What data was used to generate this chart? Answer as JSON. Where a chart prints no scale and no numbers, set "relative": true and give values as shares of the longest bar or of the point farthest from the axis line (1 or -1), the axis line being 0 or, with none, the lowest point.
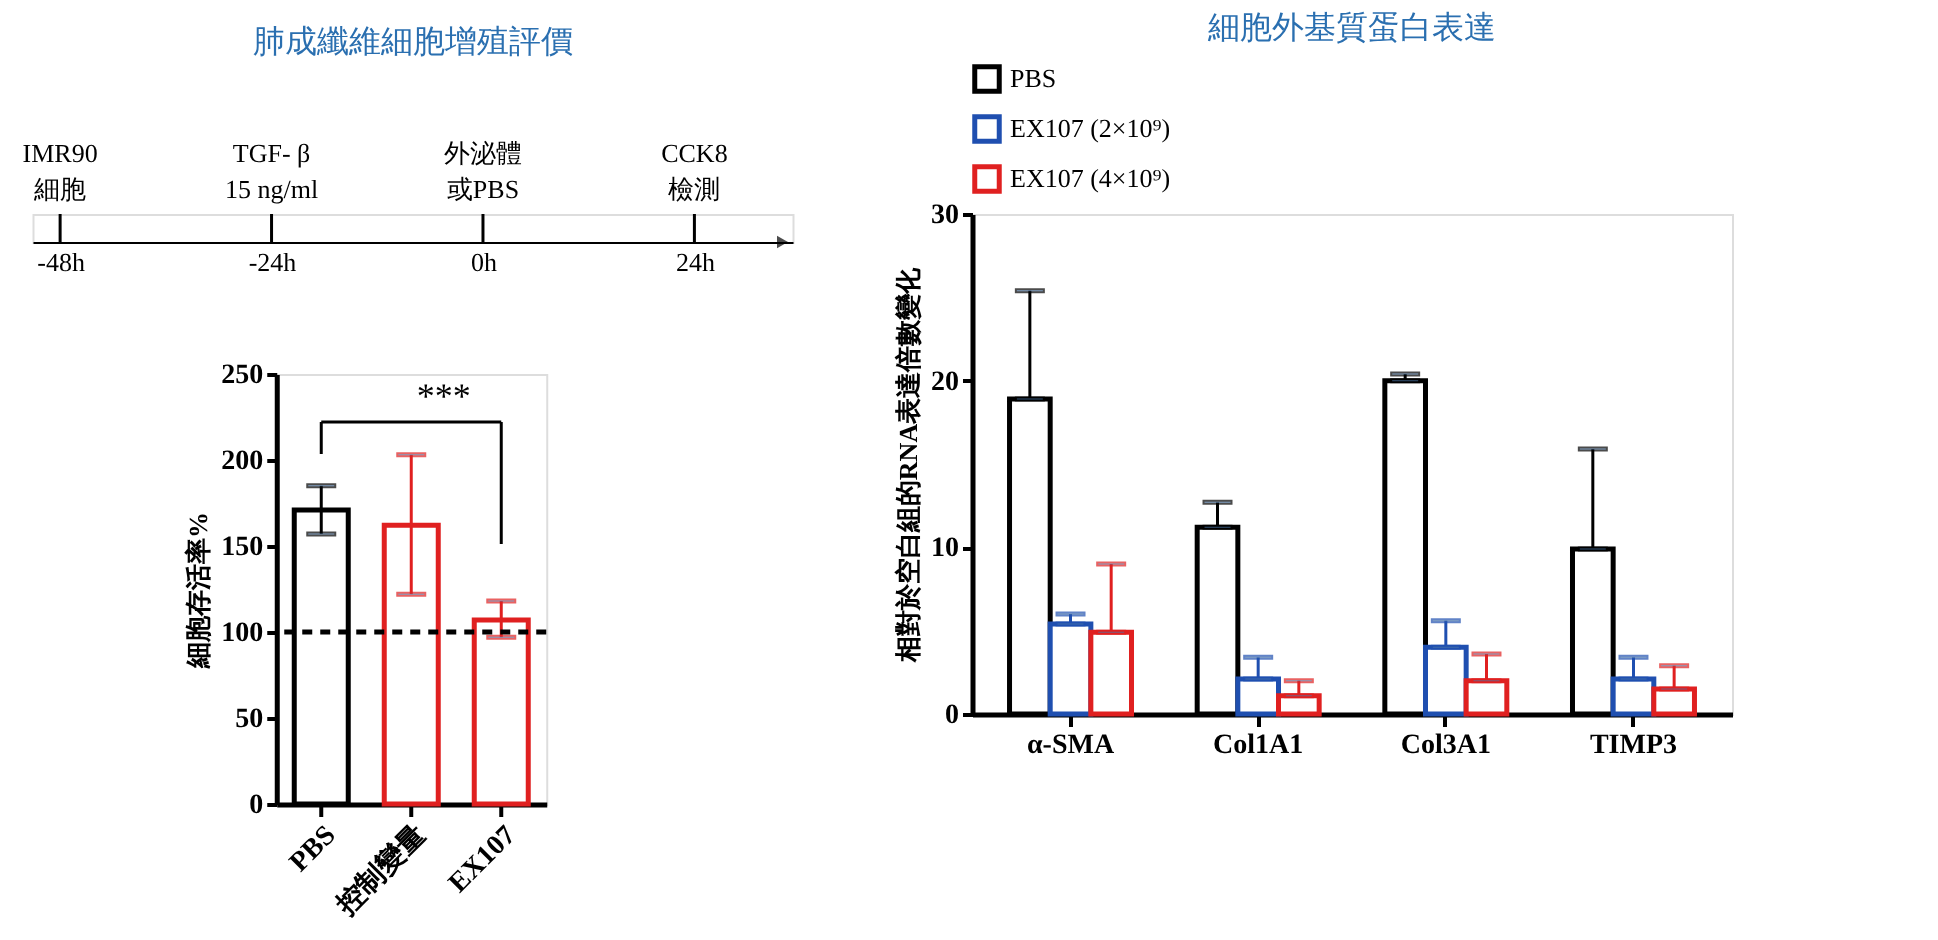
{
  "chart_data": [
    {
      "type": "bar",
      "title": "肺成纖維細胞增殖評價",
      "x": [
        -48,
        -24,
        0,
        24
      ],
      "values": [
        1,
        1,
        1,
        1
      ],
      "relative": true,
      "color": "#000000",
      "xlim": [
        -50,
        34
      ],
      "xticks": [
        {
          "value": -48,
          "label": "-48h"
        },
        {
          "value": -24,
          "label": "-24h"
        },
        {
          "value": 0,
          "label": "0h"
        },
        {
          "value": 24,
          "label": "24h"
        }
      ],
      "annotations": [
        "IMR90",
        "細胞",
        "TGF- β",
        "15 ng/ml",
        "外泌體",
        "或PBS",
        "CCK8",
        "檢測"
      ]
    },
    {
      "type": "bar",
      "categories": [
        "PBS",
        "控制變量",
        "EX107"
      ],
      "values": [
        171,
        162,
        107
      ],
      "colors": [
        "#000000",
        "#e02020",
        "#e02020"
      ],
      "errors": [
        [
          157,
          185
        ],
        [
          122,
          203
        ],
        [
          97,
          118
        ]
      ],
      "ylabel": "細胞存活率%",
      "ylim": [
        0,
        250
      ],
      "yticks": [
        0,
        50,
        100,
        150,
        200,
        250
      ],
      "ref_lines": [
        {
          "axis": "y",
          "value": 100,
          "color": "#000000",
          "line_style": "dashed"
        }
      ],
      "annotations": [
        "***"
      ],
      "grid": false
    },
    {
      "type": "bar",
      "title": "細胞外基質蛋白表達",
      "categories": [
        "α-SMA",
        "Col1A1",
        "Col3A1",
        "TIMP3"
      ],
      "ylabel": "相對於空白組的RNA表達倍數變化",
      "ylim": [
        0,
        30
      ],
      "yticks": [
        0,
        10,
        20,
        30
      ],
      "legend": "top",
      "grid": false,
      "series": [
        {
          "name": "PBS",
          "color": "#000000",
          "values": [
            18.9,
            11.2,
            20.0,
            9.9
          ],
          "errors": [
            [
              18.9,
              25.4
            ],
            [
              11.2,
              12.7
            ],
            [
              20.0,
              20.4
            ],
            [
              9.9,
              15.9
            ]
          ]
        },
        {
          "name": "EX107 (2×10⁹)",
          "color": "#1f4fb0",
          "values": [
            5.4,
            2.1,
            4.0,
            2.1
          ],
          "errors": [
            [
              5.4,
              6.0
            ],
            [
              2.1,
              3.4
            ],
            [
              4.0,
              5.6
            ],
            [
              2.1,
              3.4
            ]
          ]
        },
        {
          "name": "EX107 (4×10⁹)",
          "color": "#e02020",
          "values": [
            4.9,
            1.1,
            2.0,
            1.5
          ],
          "errors": [
            [
              4.9,
              9.0
            ],
            [
              1.1,
              2.0
            ],
            [
              2.0,
              3.6
            ],
            [
              1.5,
              2.9
            ]
          ]
        }
      ]
    }
  ]
}
